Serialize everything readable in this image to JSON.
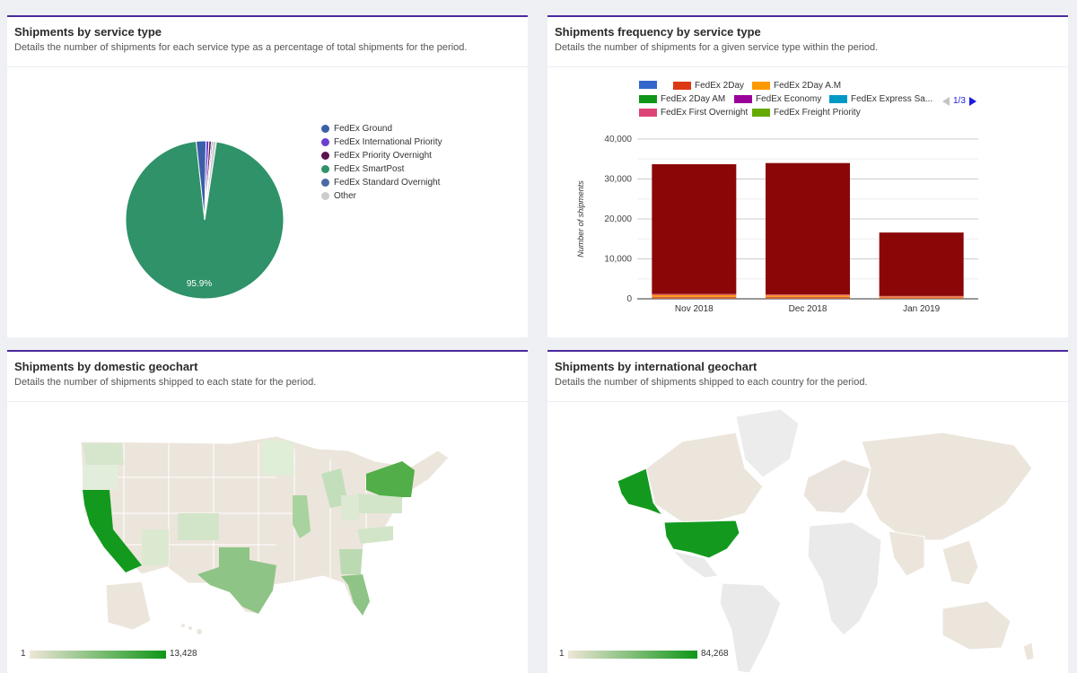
{
  "panels": {
    "service_type": {
      "title": "Shipments by service type",
      "subtitle": "Details the number of shipments for each service type as a percentage of total shipments for the period.",
      "legend": [
        {
          "label": "FedEx Ground",
          "color": "#3a5ea8"
        },
        {
          "label": "FedEx International Priority",
          "color": "#6b3fd0"
        },
        {
          "label": "FedEx Priority Overnight",
          "color": "#5a1350"
        },
        {
          "label": "FedEx SmartPost",
          "color": "#2f9268"
        },
        {
          "label": "FedEx Standard Overnight",
          "color": "#4a6aa4"
        },
        {
          "label": "Other",
          "color": "#cccccc"
        }
      ]
    },
    "frequency": {
      "title": "Shipments frequency by service type",
      "subtitle": "Details the number of shipments for a given service type within the period.",
      "legend_page": "1/3",
      "legend": [
        {
          "label": "",
          "color": "#3366cc"
        },
        {
          "label": "FedEx 2Day",
          "color": "#dc3912"
        },
        {
          "label": "FedEx 2Day A.M",
          "color": "#ff9900"
        },
        {
          "label": "FedEx 2Day AM",
          "color": "#109618"
        },
        {
          "label": "FedEx Economy",
          "color": "#990099"
        },
        {
          "label": "FedEx Express Sa...",
          "color": "#0099c6"
        },
        {
          "label": "FedEx First Overnight",
          "color": "#dd4477"
        },
        {
          "label": "FedEx Freight Priority",
          "color": "#66aa00"
        }
      ]
    },
    "domestic": {
      "title": "Shipments by domestic geochart",
      "subtitle": "Details the number of shipments shipped to each state for the period.",
      "scale_min": "1",
      "scale_max": "13,428"
    },
    "international": {
      "title": "Shipments by international geochart",
      "subtitle": "Details the number of shipments shipped to each country for the period.",
      "scale_min": "1",
      "scale_max": "84,268"
    }
  },
  "chart_data": [
    {
      "type": "pie",
      "slices": [
        {
          "label": "FedEx SmartPost",
          "value": 95.9,
          "color": "#2f9268"
        },
        {
          "label": "FedEx Ground",
          "value": 2.0,
          "color": "#3a5ea8"
        },
        {
          "label": "FedEx International Priority",
          "value": 0.6,
          "color": "#6b3fd0"
        },
        {
          "label": "FedEx Priority Overnight",
          "value": 0.5,
          "color": "#5a1350"
        },
        {
          "label": "FedEx Standard Overnight",
          "value": 0.3,
          "color": "#4a6aa4"
        },
        {
          "label": "Other",
          "value": 0.7,
          "color": "#cccccc"
        }
      ],
      "data_labels": [
        "95.9%"
      ]
    },
    {
      "type": "bar",
      "stacked": true,
      "categories": [
        "Nov 2018",
        "Dec 2018",
        "Jan 2019"
      ],
      "ylabel": "Number of shipments",
      "ylim": [
        0,
        40000
      ],
      "yticks": [
        "0",
        "10,000",
        "20,000",
        "30,000",
        "40,000"
      ],
      "series": [
        {
          "color": "#cc6644",
          "values": [
            500,
            500,
            350
          ]
        },
        {
          "color": "#ff9900",
          "values": [
            400,
            300,
            150
          ]
        },
        {
          "color": "#e06666",
          "values": [
            300,
            300,
            200
          ]
        },
        {
          "color": "#8b0707",
          "values": [
            32500,
            32900,
            15900
          ]
        }
      ]
    }
  ]
}
